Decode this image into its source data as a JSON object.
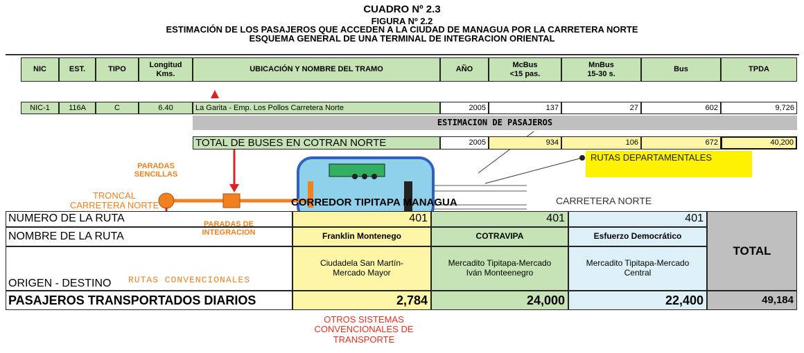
{
  "header": {
    "cuadro": "CUADRO Nº 2.3",
    "figura": "FIGURA Nº 2.2",
    "title": "ESTIMACIÓN DE LOS PASAJEROS QUE ACCEDEN A LA CIUDAD DE MANAGUA POR LA CARRETERA NORTE",
    "subtitle": "ESQUEMA GENERAL DE UNA TERMINAL DE INTEGRACION ORIENTAL"
  },
  "top_table": {
    "columns": [
      "NIC",
      "EST.",
      "TIPO",
      "Longitud\nKms.",
      "UBICACIÓN Y NOMBRE DEL TRAMO",
      "AÑO",
      "McBus\n<15 pas.",
      "MnBus\n15-30 s.",
      "Bus",
      "TPDA"
    ],
    "rows": [
      [
        "NIC-1",
        "116A",
        "C",
        "6.40",
        "La Garita - Emp. Los Pollos Carretera Norte",
        "2005",
        "137",
        "27",
        "602",
        "9,726"
      ]
    ]
  },
  "estimacion": {
    "label": "ESTIMACION DE PASAJEROS",
    "row": [
      "TOTAL DE BUSES EN COTRAN NORTE",
      "2005",
      "934",
      "106",
      "672",
      "40,200"
    ]
  },
  "diagram": {
    "paradas_sencillas": "PARADAS\nSENCILLAS",
    "troncal": "TRONCAL\nCARRETERA NORTE",
    "corredor": "CORREDOR TIPITAPA MANAGUA",
    "carretera_norte": "CARRETERA NORTE",
    "rutas_departamentales": "RUTAS DEPARTAMENTALES",
    "paradas_integracion": "PARADAS DE\nINTEGRACION",
    "rutas_convencionales": "RUTAS CONVENCIONALES",
    "otros_sistemas": "OTROS SISTEMAS\nCONVENCIONALES DE\nTRANSPORTE"
  },
  "bottom_table": {
    "total_label": "TOTAL",
    "rows": [
      [
        "NUMERO DE LA RUTA",
        "401",
        "401",
        "401"
      ],
      [
        "NOMBRE DE LA RUTA",
        "Franklin Montenego",
        "COTRAVIPA",
        "Esfuerzo Democrático"
      ],
      [
        "ORIGEN -  DESTINO",
        "Ciudadela San Martín-\nMercado Mayor",
        "Mercadito Tipitapa-Mercado\nIván Monteenegro",
        "Mercadito Tipitapa-Mercado\nCentral"
      ],
      [
        "PASAJEROS TRANSPORTADOS DIARIOS",
        "2,784",
        "24,000",
        "22,400",
        "49,184"
      ]
    ]
  }
}
